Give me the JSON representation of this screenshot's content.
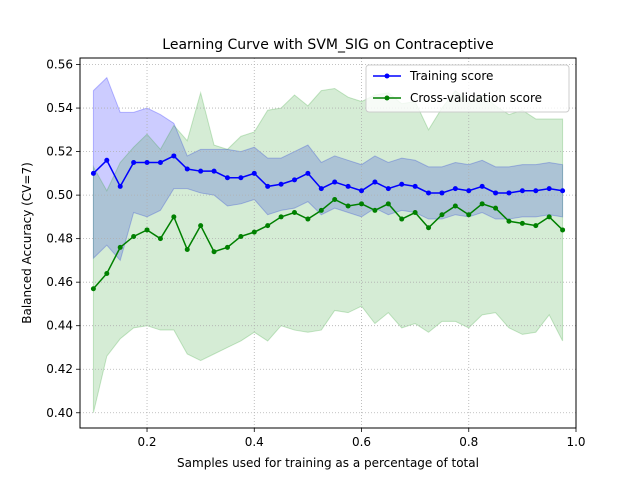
{
  "chart_data": {
    "type": "line",
    "title": "Learning Curve with SVM_SIG on Contraceptive",
    "xlabel": "Samples used for training as a percentage of total",
    "ylabel": "Balanced Accuracy (CV=7)",
    "xlim": [
      0.075,
      1.0
    ],
    "ylim": [
      0.393,
      0.563
    ],
    "xticks": [
      0.2,
      0.4,
      0.6,
      0.8,
      1.0
    ],
    "xtick_labels": [
      "0.2",
      "0.4",
      "0.6",
      "0.8",
      "1.0"
    ],
    "yticks": [
      0.4,
      0.42,
      0.44,
      0.46,
      0.48,
      0.5,
      0.52,
      0.54,
      0.56
    ],
    "ytick_labels": [
      "0.40",
      "0.42",
      "0.44",
      "0.46",
      "0.48",
      "0.50",
      "0.52",
      "0.54",
      "0.56"
    ],
    "grid": true,
    "legend_position": "top-right",
    "x": [
      0.1,
      0.125,
      0.15,
      0.175,
      0.2,
      0.225,
      0.25,
      0.275,
      0.3,
      0.325,
      0.35,
      0.375,
      0.4,
      0.425,
      0.45,
      0.475,
      0.5,
      0.525,
      0.55,
      0.575,
      0.6,
      0.625,
      0.65,
      0.675,
      0.7,
      0.725,
      0.75,
      0.775,
      0.8,
      0.825,
      0.85,
      0.875,
      0.9,
      0.925,
      0.95,
      0.975
    ],
    "series": [
      {
        "name": "Training score",
        "color": "#0000ff",
        "band_color": "#0000ff",
        "values": [
          0.51,
          0.516,
          0.504,
          0.515,
          0.515,
          0.515,
          0.518,
          0.512,
          0.511,
          0.511,
          0.508,
          0.508,
          0.51,
          0.504,
          0.505,
          0.507,
          0.51,
          0.503,
          0.506,
          0.504,
          0.502,
          0.506,
          0.503,
          0.505,
          0.504,
          0.501,
          0.501,
          0.503,
          0.502,
          0.504,
          0.501,
          0.501,
          0.502,
          0.502,
          0.503,
          0.502
        ],
        "upper": [
          0.548,
          0.554,
          0.538,
          0.538,
          0.54,
          0.537,
          0.533,
          0.518,
          0.521,
          0.521,
          0.521,
          0.52,
          0.522,
          0.517,
          0.517,
          0.52,
          0.523,
          0.515,
          0.518,
          0.516,
          0.514,
          0.518,
          0.515,
          0.517,
          0.516,
          0.513,
          0.513,
          0.515,
          0.514,
          0.516,
          0.513,
          0.513,
          0.514,
          0.514,
          0.515,
          0.514
        ],
        "lower": [
          0.471,
          0.477,
          0.47,
          0.492,
          0.49,
          0.493,
          0.503,
          0.503,
          0.501,
          0.5,
          0.495,
          0.496,
          0.498,
          0.491,
          0.493,
          0.494,
          0.497,
          0.491,
          0.494,
          0.492,
          0.49,
          0.494,
          0.491,
          0.493,
          0.492,
          0.489,
          0.489,
          0.491,
          0.49,
          0.492,
          0.489,
          0.489,
          0.49,
          0.49,
          0.491,
          0.49
        ]
      },
      {
        "name": "Cross-validation score",
        "color": "#008000",
        "band_color": "#2ca02c",
        "values": [
          0.457,
          0.464,
          0.476,
          0.481,
          0.484,
          0.48,
          0.49,
          0.475,
          0.486,
          0.474,
          0.476,
          0.481,
          0.483,
          0.486,
          0.49,
          0.492,
          0.489,
          0.493,
          0.498,
          0.495,
          0.496,
          0.493,
          0.496,
          0.489,
          0.492,
          0.485,
          0.491,
          0.495,
          0.491,
          0.496,
          0.494,
          0.488,
          0.487,
          0.486,
          0.49,
          0.484
        ],
        "upper": [
          0.513,
          0.502,
          0.515,
          0.522,
          0.528,
          0.521,
          0.532,
          0.525,
          0.547,
          0.523,
          0.521,
          0.527,
          0.529,
          0.539,
          0.54,
          0.546,
          0.541,
          0.548,
          0.549,
          0.545,
          0.543,
          0.546,
          0.547,
          0.542,
          0.543,
          0.53,
          0.54,
          0.548,
          0.543,
          0.546,
          0.541,
          0.537,
          0.539,
          0.535,
          0.535,
          0.535
        ],
        "lower": [
          0.4,
          0.426,
          0.434,
          0.439,
          0.44,
          0.438,
          0.438,
          0.427,
          0.424,
          0.427,
          0.43,
          0.433,
          0.437,
          0.433,
          0.44,
          0.438,
          0.437,
          0.438,
          0.447,
          0.446,
          0.449,
          0.441,
          0.446,
          0.439,
          0.441,
          0.437,
          0.442,
          0.442,
          0.439,
          0.445,
          0.446,
          0.439,
          0.436,
          0.437,
          0.445,
          0.433
        ]
      }
    ]
  }
}
